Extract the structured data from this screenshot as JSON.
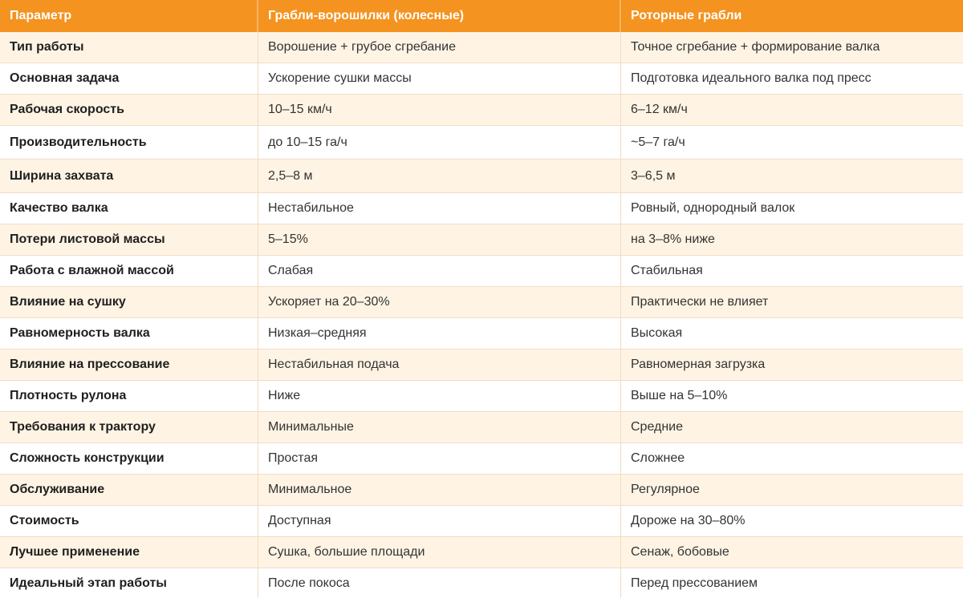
{
  "headers": [
    "Параметр",
    "Грабли-ворошилки (колесные)",
    "Роторные грабли"
  ],
  "rows": [
    [
      "Тип работы",
      "Ворошение + грубое сгребание",
      "Точное сгребание + формирование валка"
    ],
    [
      "Основная задача",
      "Ускорение сушки массы",
      "Подготовка идеального валка под пресс"
    ],
    [
      "Рабочая скорость",
      "10–15 км/ч",
      "6–12 км/ч"
    ],
    [
      "Производительность",
      "до 10–15 га/ч",
      "~5–7 га/ч"
    ],
    [
      "Ширина захвата",
      "2,5–8 м",
      "3–6,5 м"
    ],
    [
      "Качество валка",
      "Нестабильное",
      "Ровный, однородный валок"
    ],
    [
      "Потери листовой массы",
      "5–15%",
      "на 3–8% ниже"
    ],
    [
      "Работа с влажной массой",
      "Слабая",
      "Стабильная"
    ],
    [
      "Влияние на сушку",
      "Ускоряет на 20–30%",
      "Практически не влияет"
    ],
    [
      "Равномерность валка",
      "Низкая–средняя",
      "Высокая"
    ],
    [
      "Влияние на прессование",
      "Нестабильная подача",
      "Равномерная загрузка"
    ],
    [
      "Плотность рулона",
      "Ниже",
      "Выше на 5–10%"
    ],
    [
      "Требования к трактору",
      "Минимальные",
      "Средние"
    ],
    [
      "Сложность конструкции",
      "Простая",
      "Сложнее"
    ],
    [
      "Обслуживание",
      "Минимальное",
      "Регулярное"
    ],
    [
      "Стоимость",
      "Доступная",
      "Дороже на 30–80%"
    ],
    [
      "Лучшее применение",
      "Сушка, большие площади",
      "Сенаж, бобовые"
    ],
    [
      "Идеальный этап работы",
      "После покоса",
      "Перед прессованием"
    ]
  ]
}
